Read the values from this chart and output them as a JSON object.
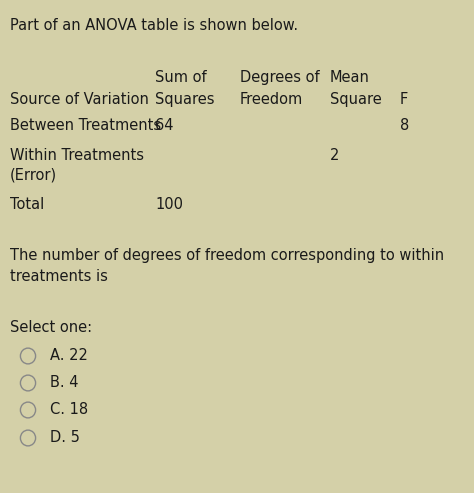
{
  "background_color": "#d4d0a8",
  "title_text": "Part of an ANOVA table is shown below.",
  "h1": [
    "Sum of",
    "Degrees of",
    "Mean"
  ],
  "h2": [
    "Source of Variation",
    "Squares",
    "Freedom",
    "Square",
    "F"
  ],
  "row1": [
    "Between Treatments",
    "64",
    "",
    "",
    "8"
  ],
  "row2a": [
    "Within Treatments",
    "",
    "",
    "2",
    ""
  ],
  "row2b": [
    "(Error)",
    "",
    "",
    "",
    ""
  ],
  "row3": [
    "Total",
    "100",
    "",
    "",
    ""
  ],
  "question_text": "The number of degrees of freedom corresponding to within\ntreatments is",
  "select_label": "Select one:",
  "options": [
    "A. 22",
    "B. 4",
    "C. 18",
    "D. 5"
  ],
  "text_color": "#1a1a1a",
  "circle_color": "#888888",
  "font_size": 10.5
}
